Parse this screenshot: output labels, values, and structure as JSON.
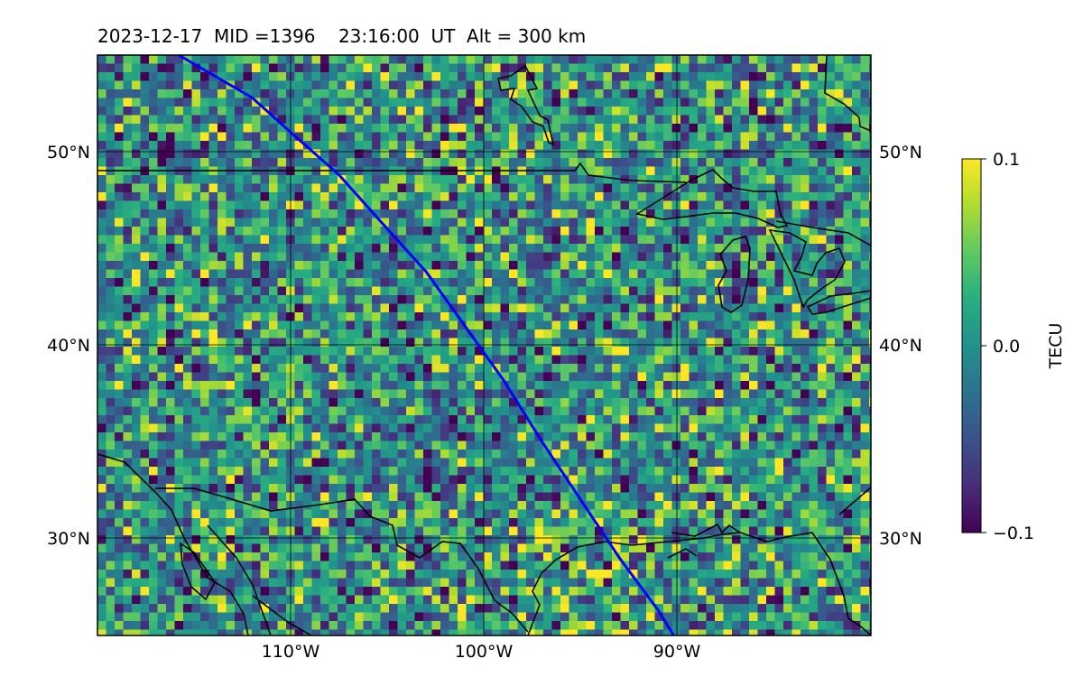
{
  "title": "2023-12-17  MID =1396    23:16:00  UT  Alt = 300 km",
  "map": {
    "lon_range": [
      -120,
      -80
    ],
    "lat_range": [
      25,
      55
    ],
    "lat_ticks": [
      {
        "value": 50,
        "label": "50°N"
      },
      {
        "value": 40,
        "label": "40°N"
      },
      {
        "value": 30,
        "label": "30°N"
      }
    ],
    "lon_ticks": [
      {
        "value": -110,
        "label": "110°W"
      },
      {
        "value": -100,
        "label": "100°W"
      },
      {
        "value": -90,
        "label": "90°W"
      }
    ],
    "gridlines": true,
    "field": "TEC perturbation",
    "track": {
      "color": "#0000ff",
      "points": [
        [
          -115.8,
          55
        ],
        [
          -112,
          52.8
        ],
        [
          -110,
          51
        ],
        [
          -107.5,
          48.8
        ],
        [
          -105,
          46
        ],
        [
          -103,
          43.8
        ],
        [
          -101,
          41
        ],
        [
          -99,
          38.2
        ],
        [
          -97,
          35
        ],
        [
          -95,
          32
        ],
        [
          -93,
          29
        ],
        [
          -91,
          26.3
        ],
        [
          -90.2,
          25
        ]
      ]
    }
  },
  "colorbar": {
    "label": "TECU",
    "min": -0.1,
    "max": 0.1,
    "ticks": [
      {
        "value": 0.1,
        "label": "0.1"
      },
      {
        "value": 0.0,
        "label": "0.0"
      },
      {
        "value": -0.1,
        "label": "−0.1"
      }
    ],
    "colormap": "viridis"
  }
}
